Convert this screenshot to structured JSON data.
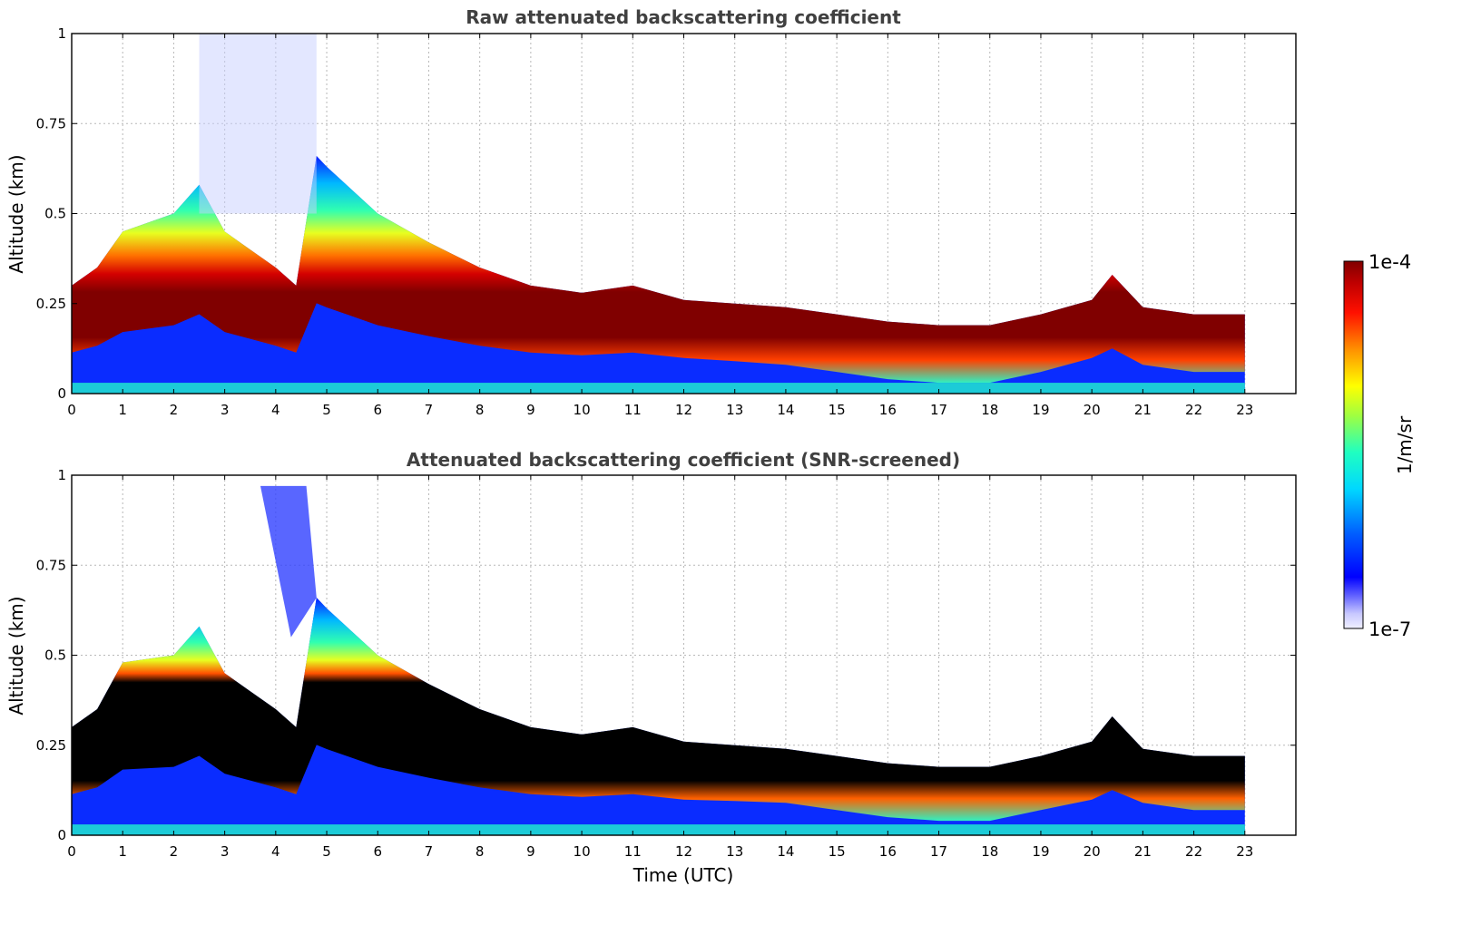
{
  "figure": {
    "xlabel": "Time (UTC)",
    "colorbar": {
      "label": "1/m/sr",
      "max_label": "1e-4",
      "min_label": "1e-7",
      "scale": "log",
      "vmin": 1e-07,
      "vmax": 0.0001
    }
  },
  "chart_data": [
    {
      "type": "heatmap",
      "title": "Raw attenuated backscattering coefficient",
      "ylabel": "Altitude (km)",
      "xlim": [
        0,
        24
      ],
      "ylim": [
        0,
        1
      ],
      "x_ticks": [
        "0",
        "1",
        "2",
        "3",
        "4",
        "5",
        "6",
        "7",
        "8",
        "9",
        "10",
        "11",
        "12",
        "13",
        "14",
        "15",
        "16",
        "17",
        "18",
        "19",
        "20",
        "21",
        "22",
        "23"
      ],
      "y_ticks": [
        "0",
        "0.25",
        "0.5",
        "0.75",
        "1"
      ],
      "y_tick_values": [
        0,
        0.25,
        0.5,
        0.75,
        1
      ],
      "grid": true,
      "data_extent_hours": [
        0,
        23
      ],
      "layer_top_km": [
        [
          0,
          0.3
        ],
        [
          0.5,
          0.35
        ],
        [
          1,
          0.45
        ],
        [
          2,
          0.5
        ],
        [
          2.5,
          0.58
        ],
        [
          3,
          0.45
        ],
        [
          3.5,
          0.4
        ],
        [
          4,
          0.35
        ],
        [
          4.4,
          0.3
        ],
        [
          4.8,
          0.66
        ],
        [
          5,
          0.63
        ],
        [
          6,
          0.5
        ],
        [
          7,
          0.42
        ],
        [
          8,
          0.35
        ],
        [
          9,
          0.3
        ],
        [
          10,
          0.28
        ],
        [
          11,
          0.3
        ],
        [
          12,
          0.26
        ],
        [
          13,
          0.25
        ],
        [
          14,
          0.24
        ],
        [
          15,
          0.22
        ],
        [
          16,
          0.2
        ],
        [
          17,
          0.19
        ],
        [
          18,
          0.19
        ],
        [
          19,
          0.22
        ],
        [
          20,
          0.26
        ],
        [
          20.4,
          0.33
        ],
        [
          21,
          0.24
        ],
        [
          22,
          0.22
        ],
        [
          23,
          0.22
        ]
      ]
    },
    {
      "type": "heatmap",
      "title": "Attenuated backscattering coefficient (SNR-screened)",
      "ylabel": "Altitude (km)",
      "xlim": [
        0,
        24
      ],
      "ylim": [
        0,
        1
      ],
      "x_ticks": [
        "0",
        "1",
        "2",
        "3",
        "4",
        "5",
        "6",
        "7",
        "8",
        "9",
        "10",
        "11",
        "12",
        "13",
        "14",
        "15",
        "16",
        "17",
        "18",
        "19",
        "20",
        "21",
        "22",
        "23"
      ],
      "y_ticks": [
        "0",
        "0.25",
        "0.5",
        "0.75",
        "1"
      ],
      "y_tick_values": [
        0,
        0.25,
        0.5,
        0.75,
        1
      ],
      "grid": true,
      "data_extent_hours": [
        0,
        23
      ],
      "layer_top_km": [
        [
          0,
          0.3
        ],
        [
          0.5,
          0.35
        ],
        [
          1,
          0.48
        ],
        [
          2,
          0.5
        ],
        [
          2.5,
          0.58
        ],
        [
          3,
          0.45
        ],
        [
          3.5,
          0.4
        ],
        [
          4,
          0.35
        ],
        [
          4.4,
          0.3
        ],
        [
          4.8,
          0.66
        ],
        [
          5,
          0.63
        ],
        [
          6,
          0.5
        ],
        [
          7,
          0.42
        ],
        [
          8,
          0.35
        ],
        [
          9,
          0.3
        ],
        [
          10,
          0.28
        ],
        [
          11,
          0.3
        ],
        [
          12,
          0.26
        ],
        [
          13,
          0.25
        ],
        [
          14,
          0.24
        ],
        [
          15,
          0.22
        ],
        [
          16,
          0.2
        ],
        [
          17,
          0.19
        ],
        [
          18,
          0.19
        ],
        [
          19,
          0.22
        ],
        [
          20,
          0.26
        ],
        [
          20.4,
          0.33
        ],
        [
          21,
          0.24
        ],
        [
          22,
          0.22
        ],
        [
          23,
          0.22
        ]
      ]
    }
  ]
}
